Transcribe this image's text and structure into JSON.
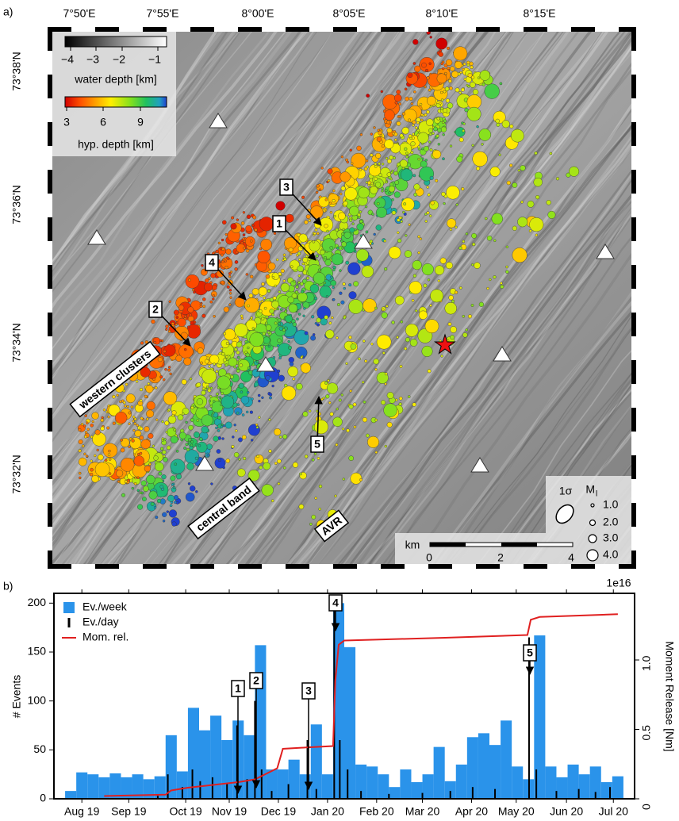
{
  "map": {
    "panel_label": "a)",
    "lon_labels": [
      "7°50'E",
      "7°55'E",
      "8°00'E",
      "8°05'E",
      "8°10'E",
      "8°15'E"
    ],
    "lat_labels": [
      "73°38'N",
      "73°36'N",
      "73°34'N",
      "73°32'N"
    ],
    "water_depth": {
      "ticks": [
        "−4",
        "−3",
        "−2",
        "−1"
      ],
      "label": "water depth [km]"
    },
    "hyp_depth": {
      "ticks": [
        "3",
        "6",
        "9"
      ],
      "label": "hyp. depth [km]"
    },
    "regions": [
      "western clusters",
      "central band",
      "AVR"
    ],
    "markers": [
      "1",
      "2",
      "3",
      "4",
      "5"
    ],
    "scale": {
      "unit": "km",
      "ticks": [
        "0",
        "2",
        "4"
      ]
    },
    "uncertainty": "1σ",
    "magnitude": {
      "symbol": "M",
      "subscript": "l",
      "values": [
        "1.0",
        "2.0",
        "3.0",
        "4.0"
      ]
    }
  },
  "chart_data": {
    "type": "bar",
    "panel_label": "b)",
    "ylabel": "# Events",
    "y2label": "Moment Release [Nm]",
    "y2_multiplier": "1e16",
    "xlim": [
      0,
      52
    ],
    "xticks": [
      {
        "value": 2.5,
        "label": "Aug 19"
      },
      {
        "value": 6.7,
        "label": "Sep 19"
      },
      {
        "value": 11.8,
        "label": "Oct 19"
      },
      {
        "value": 15.7,
        "label": "Nov 19"
      },
      {
        "value": 20.1,
        "label": "Dec 19"
      },
      {
        "value": 24.5,
        "label": "Jan 20"
      },
      {
        "value": 28.9,
        "label": "Feb 20"
      },
      {
        "value": 33,
        "label": "Mar 20"
      },
      {
        "value": 37.4,
        "label": "Apr 20"
      },
      {
        "value": 41.4,
        "label": "May 20"
      },
      {
        "value": 45.9,
        "label": "Jun 20"
      },
      {
        "value": 50.1,
        "label": "Jul 20"
      }
    ],
    "ylim": [
      0,
      210
    ],
    "yticks": [
      0,
      50,
      100,
      150,
      200
    ],
    "y2lim": [
      0,
      1.48
    ],
    "y2ticks": [
      0,
      0.5,
      {
        "value": 1,
        "label": "1.0"
      }
    ],
    "legend": "upper left",
    "annotations": [
      "1",
      "2",
      "3",
      "4",
      "5"
    ],
    "series": [
      {
        "name": "Ev./week",
        "type": "bar",
        "color": "#2a93ea",
        "x": [
          1.5,
          2.5,
          3.5,
          4.5,
          5.5,
          6.5,
          7.5,
          8.5,
          9.5,
          10.5,
          11.5,
          12.5,
          13.5,
          14.5,
          15.5,
          16.5,
          17.5,
          18.5,
          19.5,
          20.5,
          21.5,
          22.5,
          23.5,
          24.5,
          25.5,
          26.5,
          27.5,
          28.5,
          29.5,
          30.5,
          31.5,
          32.5,
          33.5,
          34.5,
          35.5,
          36.5,
          37.5,
          38.5,
          39.5,
          40.5,
          41.5,
          42.5,
          43.5,
          44.5,
          45.5,
          46.5,
          47.5,
          48.5,
          49.5,
          50.5
        ],
        "values": [
          8,
          27,
          25,
          22,
          26,
          22,
          25,
          20,
          23,
          65,
          28,
          93,
          70,
          85,
          60,
          80,
          65,
          157,
          30,
          30,
          40,
          25,
          76,
          25,
          200,
          155,
          35,
          33,
          25,
          12,
          30,
          17,
          25,
          53,
          18,
          35,
          63,
          67,
          55,
          80,
          33,
          20,
          167,
          33,
          22,
          35,
          25,
          33,
          17,
          23
        ]
      },
      {
        "name": "Ev./day",
        "type": "spike",
        "color": "#000000",
        "x": [
          9.3,
          10.2,
          11.5,
          12.4,
          13.1,
          14.2,
          15.5,
          16.4,
          17.3,
          18.0,
          18.6,
          19.5,
          21,
          22.7,
          23.5,
          25.1,
          25.6,
          26.3,
          27.5,
          30,
          33,
          35.5,
          37.5,
          39.5,
          42.55,
          43.2,
          45,
          47,
          48.5,
          49.8
        ],
        "values": [
          3,
          25,
          12,
          30,
          18,
          22,
          15,
          75,
          20,
          100,
          30,
          8,
          15,
          60,
          10,
          205,
          60,
          30,
          8,
          5,
          6,
          8,
          12,
          10,
          165,
          30,
          8,
          10,
          7,
          12
        ]
      },
      {
        "name": "Mom. rel.",
        "type": "line",
        "color": "#e02020",
        "axis": "y2",
        "x": [
          4.5,
          10,
          10.5,
          12,
          16.5,
          18,
          19,
          20,
          20.5,
          22.6,
          25,
          25.2,
          25.5,
          26,
          35,
          42.4,
          42.7,
          43.5,
          50.5
        ],
        "values": [
          0.02,
          0.03,
          0.06,
          0.08,
          0.12,
          0.14,
          0.18,
          0.22,
          0.36,
          0.37,
          0.38,
          0.85,
          1.11,
          1.14,
          1.16,
          1.18,
          1.29,
          1.31,
          1.33
        ]
      }
    ]
  }
}
